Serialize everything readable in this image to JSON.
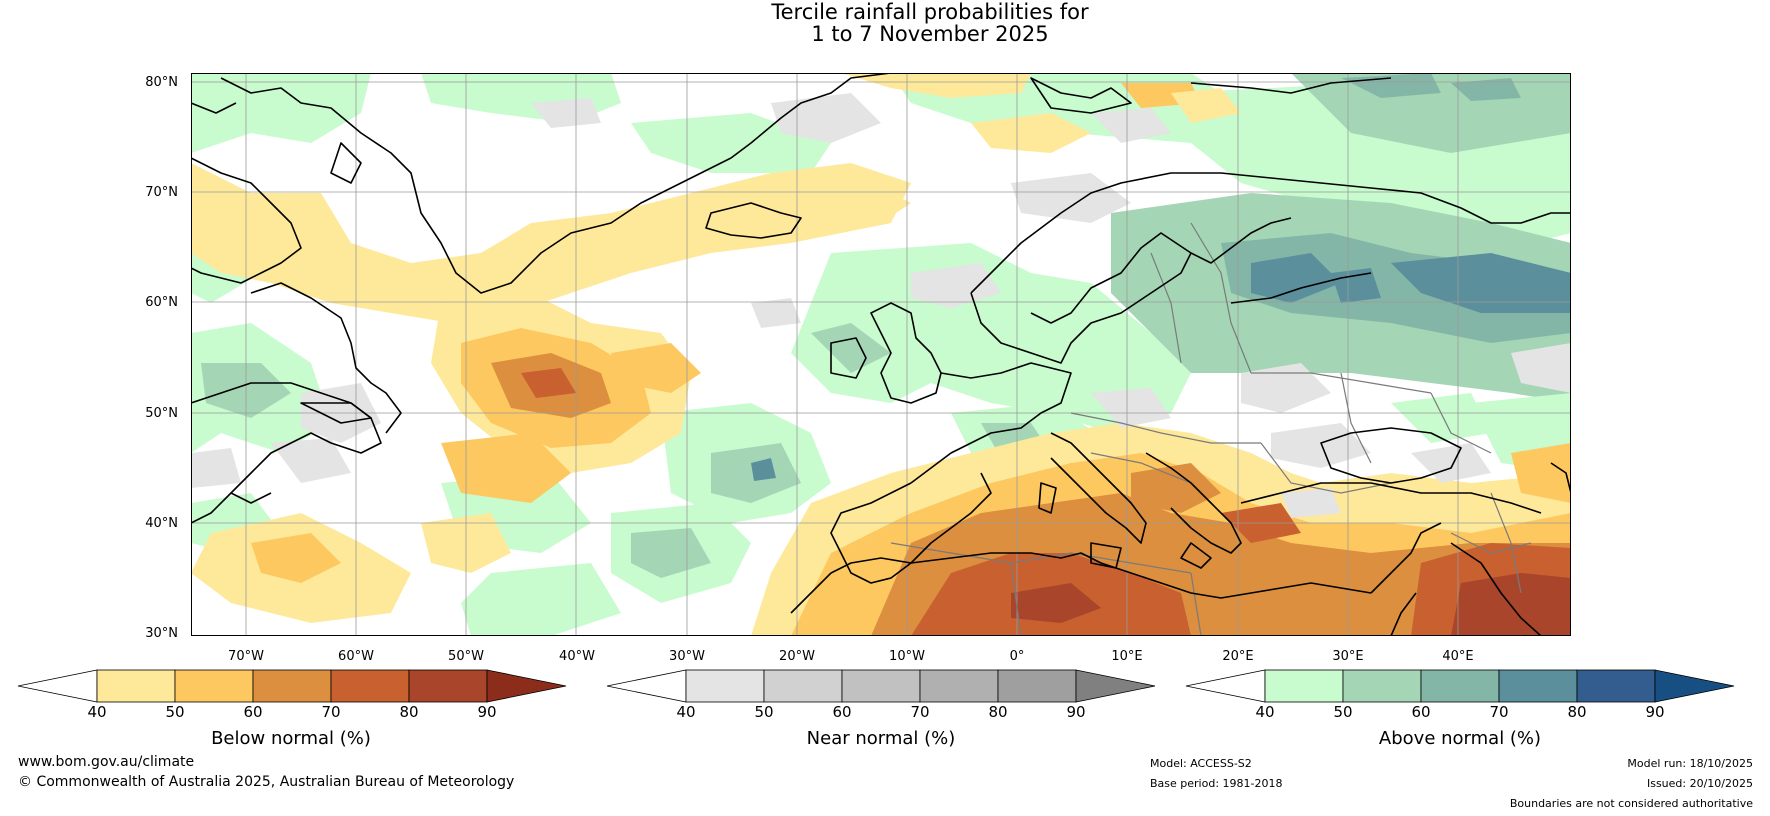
{
  "title": {
    "line1": "Tercile rainfall probabilities for",
    "line2": "1 to 7 November 2025"
  },
  "map": {
    "lat_labels": [
      "80°N",
      "70°N",
      "60°N",
      "50°N",
      "40°N",
      "30°N"
    ],
    "lon_labels": [
      "70°W",
      "60°W",
      "50°W",
      "40°W",
      "30°W",
      "20°W",
      "10°W",
      "0°",
      "10°E",
      "20°E",
      "30°E",
      "40°E"
    ]
  },
  "colorbars": {
    "below": {
      "label": "Below normal (%)",
      "ticks": [
        "40",
        "50",
        "60",
        "70",
        "80",
        "90"
      ],
      "colors": [
        "#ffffff",
        "#fee99b",
        "#fdc860",
        "#dc8f3e",
        "#c8602f",
        "#a9452a",
        "#8c2d1b"
      ]
    },
    "near": {
      "label": "Near normal (%)",
      "ticks": [
        "40",
        "50",
        "60",
        "70",
        "80",
        "90"
      ],
      "colors": [
        "#ffffff",
        "#e4e4e4",
        "#d1d1d1",
        "#c1c1c1",
        "#b0b0b0",
        "#9f9f9f",
        "#808080"
      ]
    },
    "above": {
      "label": "Above normal (%)",
      "ticks": [
        "40",
        "50",
        "60",
        "70",
        "80",
        "90"
      ],
      "colors": [
        "#ffffff",
        "#c8fbce",
        "#a4d6b6",
        "#84b6a8",
        "#5b8f9c",
        "#325d8e",
        "#184f82"
      ]
    }
  },
  "footer": {
    "website": "www.bom.gov.au/climate",
    "copyright": "© Commonwealth of Australia 2025, Australian Bureau of Meteorology",
    "model": "Model: ACCESS-S2",
    "base_period": "Base period: 1981-2018",
    "model_run": "Model run: 18/10/2025",
    "issued": "Issued: 20/10/2025",
    "disclaimer": "Boundaries are not considered authoritative"
  }
}
